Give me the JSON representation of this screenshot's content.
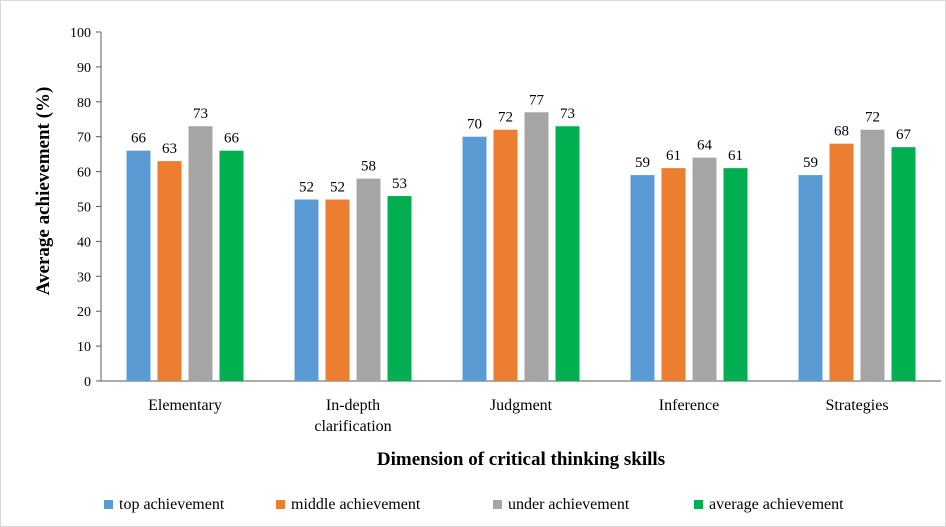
{
  "chart_data": {
    "type": "bar",
    "categories": [
      "Elementary",
      "In-depth clarification",
      "Judgment",
      "Inference",
      "Strategies"
    ],
    "category_lines": [
      [
        "Elementary"
      ],
      [
        "In-depth",
        "clarification"
      ],
      [
        "Judgment"
      ],
      [
        "Inference"
      ],
      [
        "Strategies"
      ]
    ],
    "series": [
      {
        "name": "top achievement",
        "color": "#5b9bd5",
        "values": [
          66,
          52,
          70,
          59,
          59
        ]
      },
      {
        "name": "middle achievement",
        "color": "#ed7d31",
        "values": [
          63,
          52,
          72,
          61,
          68
        ]
      },
      {
        "name": "under achievement",
        "color": "#a5a5a5",
        "values": [
          73,
          58,
          77,
          64,
          72
        ]
      },
      {
        "name": "average achievement",
        "color": "#00b050",
        "values": [
          66,
          53,
          73,
          61,
          67
        ]
      }
    ],
    "xlabel": "Dimension of critical thinking skills",
    "ylabel": "Average achievement (%)",
    "ylim": [
      0,
      100
    ],
    "yticks": [
      0,
      10,
      20,
      30,
      40,
      50,
      60,
      70,
      80,
      90,
      100
    ],
    "grid": false,
    "legend_position": "bottom",
    "data_labels": true
  }
}
